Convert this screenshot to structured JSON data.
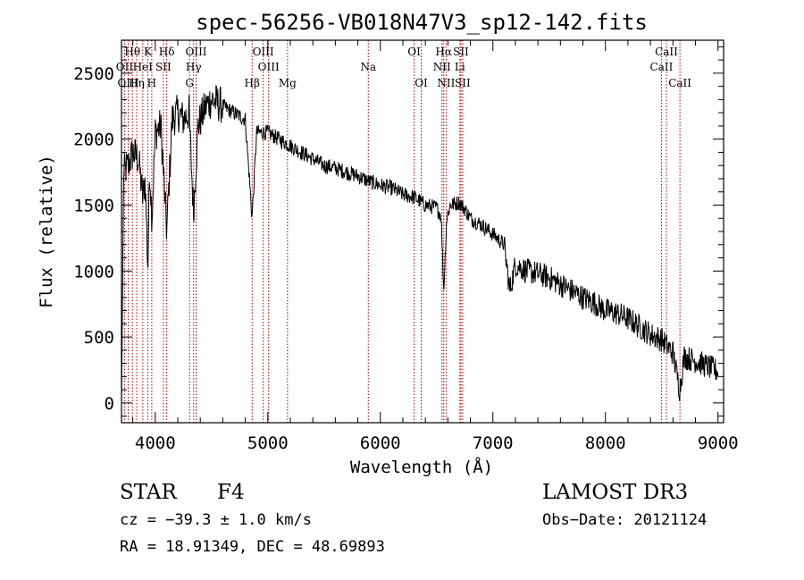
{
  "chart_data": {
    "type": "line",
    "title": "spec-56256-VB018N47V3_sp12-142.fits",
    "xlabel": "Wavelength (Å)",
    "ylabel": "Flux (relative)",
    "xlim": [
      3700,
      9050
    ],
    "ylim": [
      -150,
      2750
    ],
    "xticks": [
      4000,
      5000,
      6000,
      7000,
      8000,
      9000
    ],
    "yticks": [
      0,
      500,
      1000,
      1500,
      2000,
      2500
    ],
    "spectrum_anchor_points": {
      "x": [
        3700,
        3720,
        3760,
        3800,
        3850,
        3890,
        3910,
        3935,
        3950,
        3970,
        4000,
        4050,
        4102,
        4150,
        4200,
        4250,
        4300,
        4340,
        4380,
        4450,
        4500,
        4600,
        4700,
        4800,
        4861,
        4900,
        5000,
        5100,
        5200,
        5300,
        5400,
        5500,
        5600,
        5700,
        5800,
        5900,
        6000,
        6100,
        6200,
        6300,
        6400,
        6500,
        6540,
        6563,
        6590,
        6620,
        6700,
        6750,
        6800,
        6900,
        7000,
        7100,
        7150,
        7200,
        7300,
        7400,
        7500,
        7600,
        7700,
        7800,
        7900,
        8000,
        8100,
        8200,
        8300,
        8400,
        8500,
        8600,
        8660,
        8700,
        8800,
        8900,
        9000
      ],
      "y": [
        0,
        1750,
        1800,
        1900,
        1850,
        1550,
        1700,
        1000,
        1800,
        1400,
        2050,
        2100,
        1300,
        2150,
        2200,
        2150,
        2200,
        1450,
        2100,
        2250,
        2300,
        2250,
        2200,
        2150,
        1400,
        2050,
        2050,
        2000,
        1950,
        1900,
        1850,
        1800,
        1780,
        1750,
        1720,
        1680,
        1650,
        1630,
        1580,
        1560,
        1500,
        1480,
        1420,
        850,
        1400,
        1500,
        1520,
        1470,
        1400,
        1350,
        1280,
        1200,
        850,
        1050,
        1000,
        980,
        950,
        900,
        850,
        800,
        760,
        700,
        680,
        640,
        580,
        520,
        480,
        380,
        100,
        350,
        320,
        280,
        240
      ]
    },
    "noise_amplitude": 60,
    "lines": [
      {
        "name": "Hθ",
        "wl": 3797,
        "row": 1
      },
      {
        "name": "OII",
        "wl": 3727,
        "row": 2
      },
      {
        "name": "Hη",
        "wl": 3835,
        "row": 3
      },
      {
        "name": "OIII",
        "wl": 3760,
        "row": 3
      },
      {
        "name": "HeI",
        "wl": 3889,
        "row": 2
      },
      {
        "name": "K",
        "wl": 3934,
        "row": 1
      },
      {
        "name": "H",
        "wl": 3969,
        "row": 3
      },
      {
        "name": "SII",
        "wl": 4072,
        "row": 2
      },
      {
        "name": "Hδ",
        "wl": 4102,
        "row": 1
      },
      {
        "name": "OIII",
        "wl": 4363,
        "row": 1
      },
      {
        "name": "Hγ",
        "wl": 4341,
        "row": 2
      },
      {
        "name": "G",
        "wl": 4305,
        "row": 3
      },
      {
        "name": "Hβ",
        "wl": 4861,
        "row": 3
      },
      {
        "name": "OIII",
        "wl": 4959,
        "row": 1
      },
      {
        "name": "OIII",
        "wl": 5007,
        "row": 2
      },
      {
        "name": "Mg",
        "wl": 5175,
        "row": 3
      },
      {
        "name": "Na",
        "wl": 5893,
        "row": 2
      },
      {
        "name": "OI",
        "wl": 6300,
        "row": 1
      },
      {
        "name": "OI",
        "wl": 6363,
        "row": 3
      },
      {
        "name": "Hα",
        "wl": 6563,
        "row": 1
      },
      {
        "name": "NII",
        "wl": 6548,
        "row": 2
      },
      {
        "name": "NII",
        "wl": 6584,
        "row": 3
      },
      {
        "name": "SII",
        "wl": 6716,
        "row": 1
      },
      {
        "name": "Li",
        "wl": 6707,
        "row": 2
      },
      {
        "name": "SII",
        "wl": 6731,
        "row": 3
      },
      {
        "name": "CaII",
        "wl": 8542,
        "row": 1
      },
      {
        "name": "CaII",
        "wl": 8498,
        "row": 2
      },
      {
        "name": "CaII",
        "wl": 8662,
        "row": 3
      }
    ]
  },
  "footer": {
    "object_type": "STAR",
    "subclass": "F4",
    "survey": "LAMOST DR3",
    "velocity": "cz = −39.3 ± 1.0 km/s",
    "obs_date": "Obs−Date: 20121124",
    "coords": "RA =  18.91349, DEC =  48.69893"
  },
  "colors": {
    "line_marker": "#b00000",
    "spectrum": "#000000"
  }
}
